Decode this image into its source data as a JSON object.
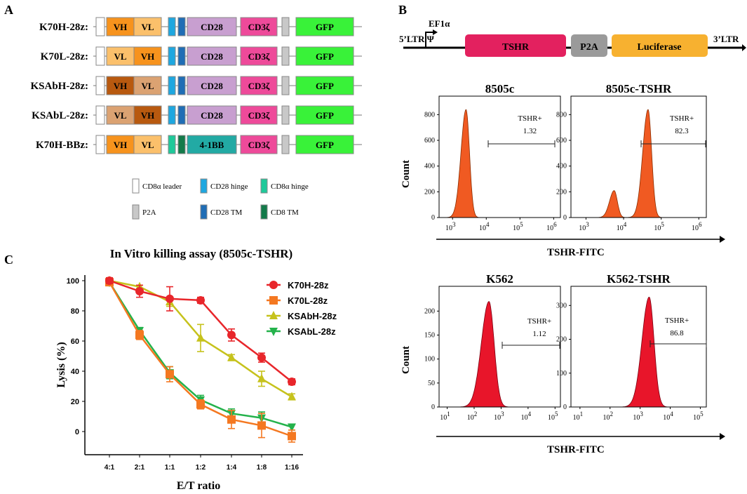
{
  "panel_letters": {
    "a": "A",
    "b": "B",
    "c": "C"
  },
  "constructs": [
    {
      "name": "K70H-28z:",
      "domains": [
        "VH",
        "VL"
      ],
      "hinge": "CD28 hinge",
      "tm": "CD28 TM",
      "costim": "CD28",
      "signal": "CD3ζ",
      "reporter": "GFP"
    },
    {
      "name": "K70L-28z:",
      "domains": [
        "VL",
        "VH"
      ],
      "hinge": "CD28 hinge",
      "tm": "CD28 TM",
      "costim": "CD28",
      "signal": "CD3ζ",
      "reporter": "GFP"
    },
    {
      "name": "KSAbH-28z:",
      "domains": [
        "VH",
        "VL"
      ],
      "hinge": "CD28 hinge",
      "tm": "CD28 TM",
      "costim": "CD28",
      "signal": "CD3ζ",
      "reporter": "GFP"
    },
    {
      "name": "KSAbL-28z:",
      "domains": [
        "VL",
        "VH"
      ],
      "hinge": "CD28 hinge",
      "tm": "CD28 TM",
      "costim": "CD28",
      "signal": "CD3ζ",
      "reporter": "GFP"
    },
    {
      "name": "K70H-BBz:",
      "domains": [
        "VH",
        "VL"
      ],
      "hinge": "CD8α hinge",
      "tm": "CD8 TM",
      "costim": "4-1BB",
      "signal": "CD3ζ",
      "reporter": "GFP"
    }
  ],
  "construct_legend": [
    {
      "label": "CD8α leader",
      "color": "#ffffff"
    },
    {
      "label": "CD28 hinge",
      "color": "#1ea7e0"
    },
    {
      "label": "CD8α hinge",
      "color": "#1fc99a"
    },
    {
      "label": "P2A",
      "color": "#c8c8c8"
    },
    {
      "label": "CD28 TM",
      "color": "#1f6db5"
    },
    {
      "label": "CD8 TM",
      "color": "#137a4a"
    }
  ],
  "vector": {
    "ltr5": "5’LTR Ψ",
    "promoter": "EF1α",
    "gene": "TSHR",
    "linker": "P2A",
    "reporter": "Luciferase",
    "ltr3": "3’LTR"
  },
  "chart_data": [
    {
      "type": "histogram",
      "title": "8505c",
      "ylabel": "Count",
      "xlabel": "TSHR-FITC",
      "x_ticks": [
        "10 3",
        "10 4",
        "10 5",
        "10 6"
      ],
      "y_ticks": [
        0,
        200,
        400,
        600,
        800
      ],
      "ylim": [
        0,
        900
      ],
      "gate_label": "TSHR+",
      "gate_value": "1.32",
      "peaks": [
        {
          "center_log": 3.4,
          "height": 840
        }
      ]
    },
    {
      "type": "histogram",
      "title": "8505c-TSHR",
      "ylabel": "Count",
      "xlabel": "TSHR-FITC",
      "x_ticks": [
        "10 3",
        "10 4",
        "10 5",
        "10 6"
      ],
      "y_ticks": [
        0,
        200,
        400,
        600,
        800
      ],
      "ylim": [
        0,
        900
      ],
      "gate_label": "TSHR+",
      "gate_value": "82.3",
      "peaks": [
        {
          "center_log": 3.75,
          "height": 210
        },
        {
          "center_log": 4.65,
          "height": 840
        }
      ]
    },
    {
      "type": "histogram",
      "title": "K562",
      "ylabel": "Count",
      "xlabel": "TSHR-FITC",
      "x_ticks": [
        "10 1",
        "10 2",
        "10 3",
        "10 4",
        "10 5"
      ],
      "y_ticks": [
        0,
        50,
        100,
        150,
        200
      ],
      "ylim": [
        0,
        240
      ],
      "gate_label": "TSHR+",
      "gate_value": "1.12",
      "peaks": [
        {
          "center_log": 2.55,
          "height": 220
        }
      ]
    },
    {
      "type": "histogram",
      "title": "K562-TSHR",
      "ylabel": "Count",
      "xlabel": "TSHR-FITC",
      "x_ticks": [
        "10 1",
        "10 2",
        "10 3",
        "10 4",
        "10 5"
      ],
      "y_ticks": [
        0,
        100,
        200,
        300
      ],
      "ylim": [
        0,
        340
      ],
      "gate_label": "TSHR+",
      "gate_value": "86.8",
      "peaks": [
        {
          "center_log": 3.3,
          "height": 325
        }
      ]
    },
    {
      "type": "line",
      "title": "In Vitro killing assay (8505c-TSHR)",
      "xlabel": "E/T ratio",
      "ylabel": "Lysis (%)",
      "categories": [
        "4:1",
        "2:1",
        "1:1",
        "1:2",
        "1:4",
        "1:8",
        "1:16"
      ],
      "ylim": [
        -10,
        100
      ],
      "y_ticks": [
        0,
        20,
        40,
        60,
        80,
        100
      ],
      "series": [
        {
          "name": "K70H-28z",
          "color": "#e8262b",
          "marker": "circle",
          "values": [
            100,
            93,
            88,
            87,
            64,
            49,
            33
          ],
          "errors": [
            2,
            4,
            8,
            2,
            4,
            3,
            2
          ]
        },
        {
          "name": "K70L-28z",
          "color": "#f47821",
          "marker": "square",
          "values": [
            99,
            64,
            38,
            18,
            8,
            4,
            -3
          ],
          "errors": [
            2,
            3,
            5,
            3,
            6,
            8,
            4
          ]
        },
        {
          "name": "KSAbH-28z",
          "color": "#c6c21c",
          "marker": "triangle-up",
          "values": [
            100,
            96,
            86,
            62,
            49,
            35,
            23
          ],
          "errors": [
            1,
            1,
            3,
            9,
            2,
            5,
            2
          ]
        },
        {
          "name": "KSAbL-28z",
          "color": "#24b24b",
          "marker": "triangle-down",
          "values": [
            99,
            67,
            39,
            21,
            12,
            9,
            3
          ],
          "errors": [
            1,
            2,
            4,
            3,
            3,
            4,
            2
          ]
        }
      ]
    }
  ]
}
